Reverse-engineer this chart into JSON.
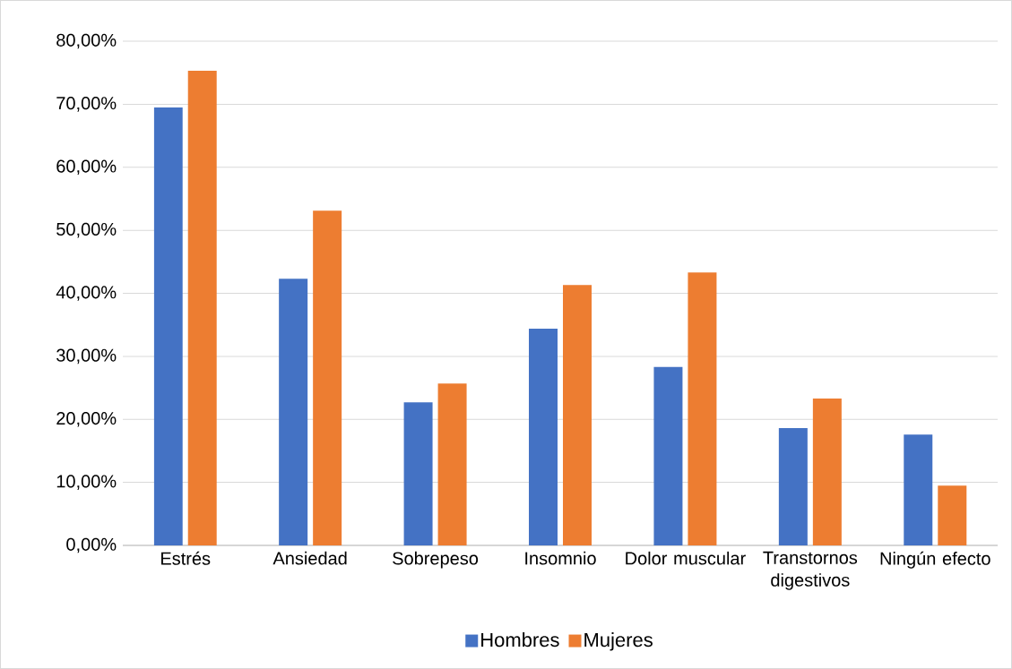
{
  "chart_data": {
    "type": "bar",
    "categories": [
      "Estrés",
      "Ansiedad",
      "Sobrepeso",
      "Insomnio",
      "Dolor muscular",
      "Transtornos digestivos",
      "Ningún efecto"
    ],
    "series": [
      {
        "name": "Hombres",
        "color": "#4472c4",
        "values": [
          69.5,
          42.3,
          22.7,
          34.4,
          28.3,
          18.6,
          17.6
        ]
      },
      {
        "name": "Mujeres",
        "color": "#ed7d31",
        "values": [
          75.3,
          53.1,
          25.7,
          41.3,
          43.3,
          23.3,
          9.5
        ]
      }
    ],
    "ylim": [
      0,
      80
    ],
    "yticks": [
      {
        "value": 0,
        "label": "0,00%"
      },
      {
        "value": 10,
        "label": "10,00%"
      },
      {
        "value": 20,
        "label": "20,00%"
      },
      {
        "value": 30,
        "label": "30,00%"
      },
      {
        "value": 40,
        "label": "40,00%"
      },
      {
        "value": 50,
        "label": "50,00%"
      },
      {
        "value": 60,
        "label": "60,00%"
      },
      {
        "value": 70,
        "label": "70,00%"
      },
      {
        "value": 80,
        "label": "80,00%"
      }
    ],
    "grid": "y",
    "legend": "bottom"
  }
}
